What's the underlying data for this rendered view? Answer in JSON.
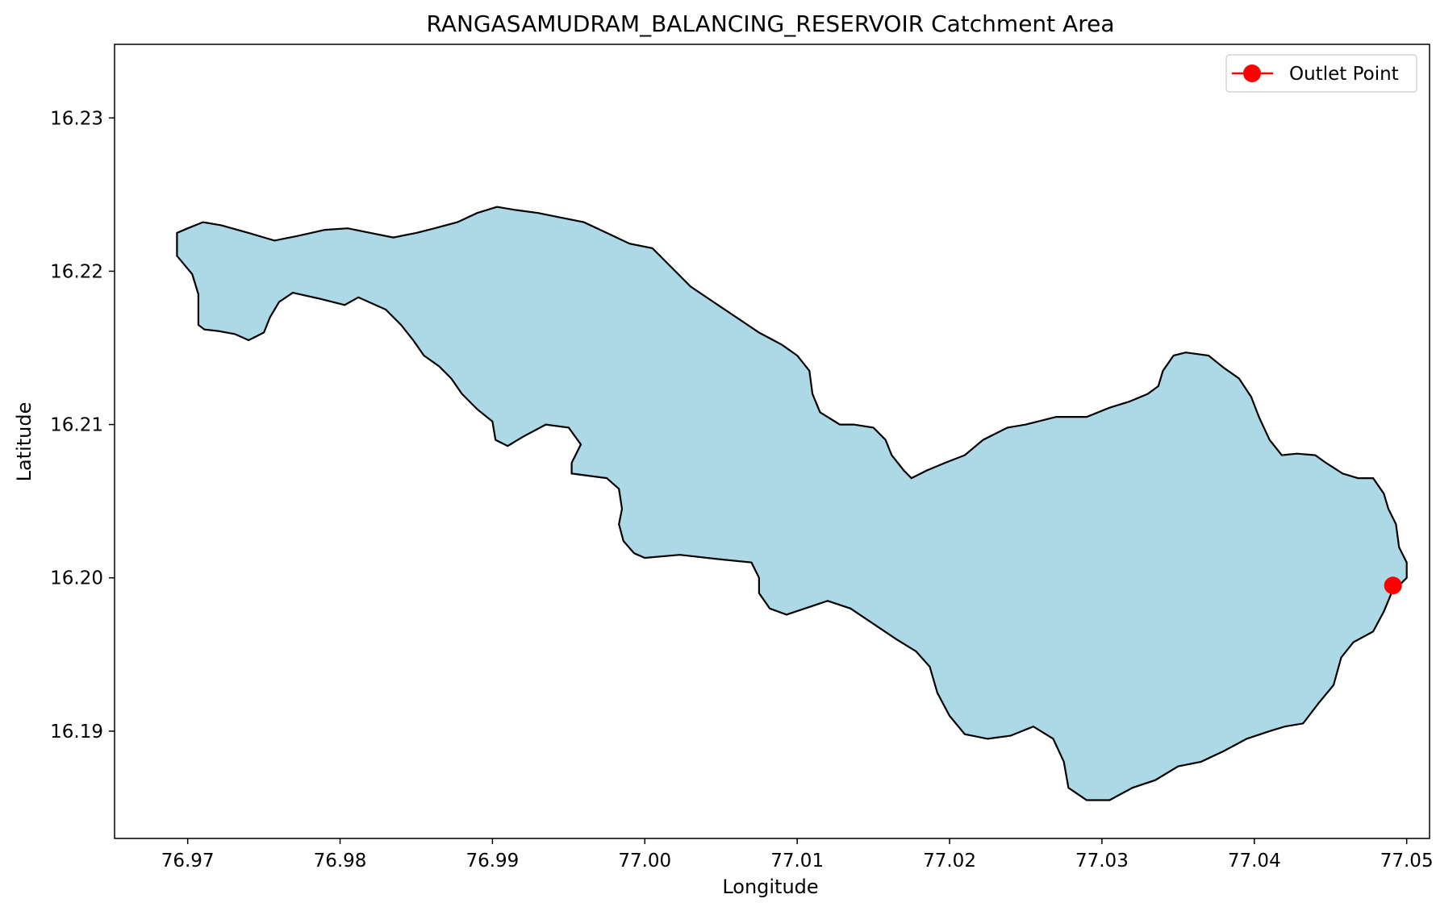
{
  "chart_data": {
    "type": "map",
    "title": "RANGASAMUDRAM_BALANCING_RESERVOIR Catchment Area",
    "xlabel": "Longitude",
    "ylabel": "Latitude",
    "xlim": [
      76.9652,
      77.0515
    ],
    "ylim": [
      16.183,
      16.2348
    ],
    "x_ticks": [
      76.97,
      76.98,
      76.99,
      77.0,
      77.01,
      77.02,
      77.03,
      77.04,
      77.05
    ],
    "x_tick_labels": [
      "76.97",
      "76.98",
      "76.99",
      "77.00",
      "77.01",
      "77.02",
      "77.03",
      "77.04",
      "77.05"
    ],
    "y_ticks": [
      16.19,
      16.2,
      16.21,
      16.22,
      16.23
    ],
    "y_tick_labels": [
      "16.19",
      "16.20",
      "16.21",
      "16.22",
      "16.23"
    ],
    "legend": {
      "position": "top-right",
      "entries": [
        {
          "label": "Outlet Point",
          "color": "#ff0000",
          "marker": "circle"
        }
      ]
    },
    "catchment": {
      "fill": "#add8e6",
      "stroke": "#000000",
      "boundary": [
        [
          76.9693,
          16.2225
        ],
        [
          76.9693,
          16.221
        ],
        [
          76.9703,
          16.2198
        ],
        [
          76.9707,
          16.2185
        ],
        [
          76.9707,
          16.2165
        ],
        [
          76.9711,
          16.2162
        ],
        [
          76.972,
          16.2161
        ],
        [
          76.9731,
          16.2159
        ],
        [
          76.974,
          16.2155
        ],
        [
          76.975,
          16.216
        ],
        [
          76.9754,
          16.217
        ],
        [
          76.976,
          16.218
        ],
        [
          76.9769,
          16.2186
        ],
        [
          76.9787,
          16.2182
        ],
        [
          76.9803,
          16.2178
        ],
        [
          76.9812,
          16.2183
        ],
        [
          76.983,
          16.2175
        ],
        [
          76.984,
          16.2165
        ],
        [
          76.9848,
          16.2155
        ],
        [
          76.9855,
          16.2145
        ],
        [
          76.9865,
          16.2138
        ],
        [
          76.9873,
          16.213
        ],
        [
          76.988,
          16.212
        ],
        [
          76.989,
          16.211
        ],
        [
          76.99,
          16.2102
        ],
        [
          76.9902,
          16.209
        ],
        [
          76.991,
          16.2086
        ],
        [
          76.992,
          16.2092
        ],
        [
          76.9935,
          16.21
        ],
        [
          76.995,
          16.2098
        ],
        [
          76.9958,
          16.2087
        ],
        [
          76.9952,
          16.2075
        ],
        [
          76.9952,
          16.2068
        ],
        [
          76.9975,
          16.2065
        ],
        [
          76.9983,
          16.2058
        ],
        [
          76.9985,
          16.2045
        ],
        [
          76.9983,
          16.2035
        ],
        [
          76.9986,
          16.2024
        ],
        [
          76.9993,
          16.2016
        ],
        [
          77.0,
          16.2013
        ],
        [
          77.0023,
          16.2015
        ],
        [
          77.005,
          16.2012
        ],
        [
          77.007,
          16.201
        ],
        [
          77.0075,
          16.2
        ],
        [
          77.0075,
          16.199
        ],
        [
          77.0082,
          16.198
        ],
        [
          77.0093,
          16.1976
        ],
        [
          77.0105,
          16.198
        ],
        [
          77.012,
          16.1985
        ],
        [
          77.0135,
          16.198
        ],
        [
          77.015,
          16.197
        ],
        [
          77.0165,
          16.196
        ],
        [
          77.0178,
          16.1952
        ],
        [
          77.0187,
          16.1942
        ],
        [
          77.0192,
          16.1925
        ],
        [
          77.02,
          16.191
        ],
        [
          77.021,
          16.1898
        ],
        [
          77.0225,
          16.1895
        ],
        [
          77.024,
          16.1897
        ],
        [
          77.0255,
          16.1903
        ],
        [
          77.0268,
          16.1895
        ],
        [
          77.0275,
          16.188
        ],
        [
          77.0278,
          16.1863
        ],
        [
          77.029,
          16.1855
        ],
        [
          77.0305,
          16.1855
        ],
        [
          77.032,
          16.1863
        ],
        [
          77.0335,
          16.1868
        ],
        [
          77.035,
          16.1877
        ],
        [
          77.0365,
          16.188
        ],
        [
          77.038,
          16.1887
        ],
        [
          77.0395,
          16.1895
        ],
        [
          77.041,
          16.19
        ],
        [
          77.042,
          16.1903
        ],
        [
          77.0432,
          16.1905
        ],
        [
          77.0442,
          16.1918
        ],
        [
          77.0452,
          16.193
        ],
        [
          77.0457,
          16.1948
        ],
        [
          77.0465,
          16.1958
        ],
        [
          77.0478,
          16.1965
        ],
        [
          77.0485,
          16.1978
        ],
        [
          77.049,
          16.199
        ],
        [
          77.05,
          16.2
        ],
        [
          77.05,
          16.201
        ],
        [
          77.0495,
          16.202
        ],
        [
          77.0493,
          16.2035
        ],
        [
          77.0488,
          16.2045
        ],
        [
          77.0485,
          16.2055
        ],
        [
          77.0478,
          16.2065
        ],
        [
          77.0468,
          16.2065
        ],
        [
          77.0458,
          16.2068
        ],
        [
          77.0447,
          16.2075
        ],
        [
          77.044,
          16.208
        ],
        [
          77.0428,
          16.2081
        ],
        [
          77.0418,
          16.208
        ],
        [
          77.041,
          16.209
        ],
        [
          77.0403,
          16.2105
        ],
        [
          77.0398,
          16.2118
        ],
        [
          77.039,
          16.213
        ],
        [
          77.038,
          16.2137
        ],
        [
          77.037,
          16.2145
        ],
        [
          77.0355,
          16.2147
        ],
        [
          77.0347,
          16.2145
        ],
        [
          77.034,
          16.2135
        ],
        [
          77.0337,
          16.2125
        ],
        [
          77.033,
          16.212
        ],
        [
          77.0318,
          16.2115
        ],
        [
          77.0305,
          16.2111
        ],
        [
          77.029,
          16.2105
        ],
        [
          77.027,
          16.2105
        ],
        [
          77.025,
          16.21
        ],
        [
          77.0238,
          16.2098
        ],
        [
          77.0222,
          16.209
        ],
        [
          77.021,
          16.208
        ],
        [
          77.0197,
          16.2075
        ],
        [
          77.0185,
          16.207
        ],
        [
          77.0175,
          16.2065
        ],
        [
          77.017,
          16.207
        ],
        [
          77.0162,
          16.208
        ],
        [
          77.0158,
          16.209
        ],
        [
          77.015,
          16.2098
        ],
        [
          77.0137,
          16.21
        ],
        [
          77.0128,
          16.21
        ],
        [
          77.0115,
          16.2108
        ],
        [
          77.011,
          16.212
        ],
        [
          77.0108,
          16.2135
        ],
        [
          77.01,
          16.2145
        ],
        [
          77.009,
          16.2152
        ],
        [
          77.0075,
          16.216
        ],
        [
          77.006,
          16.217
        ],
        [
          77.0045,
          16.218
        ],
        [
          77.003,
          16.219
        ],
        [
          77.002,
          16.22
        ],
        [
          77.0005,
          16.2215
        ],
        [
          76.999,
          16.2218
        ],
        [
          76.9975,
          16.2225
        ],
        [
          76.996,
          16.2232
        ],
        [
          76.9945,
          16.2235
        ],
        [
          76.993,
          16.2238
        ],
        [
          76.9915,
          16.224
        ],
        [
          76.9903,
          16.2242
        ],
        [
          76.989,
          16.2238
        ],
        [
          76.9877,
          16.2232
        ],
        [
          76.9862,
          16.2228
        ],
        [
          76.985,
          16.2225
        ],
        [
          76.9835,
          16.2222
        ],
        [
          76.982,
          16.2225
        ],
        [
          76.9805,
          16.2228
        ],
        [
          76.979,
          16.2227
        ],
        [
          76.9772,
          16.2223
        ],
        [
          76.9757,
          16.222
        ],
        [
          76.974,
          16.2225
        ],
        [
          76.9722,
          16.223
        ],
        [
          76.971,
          16.2232
        ],
        [
          76.97,
          16.2228
        ]
      ]
    },
    "outlet_point": {
      "x": 77.0491,
      "y": 16.1995,
      "color": "#ff0000",
      "label": "Outlet Point"
    }
  }
}
